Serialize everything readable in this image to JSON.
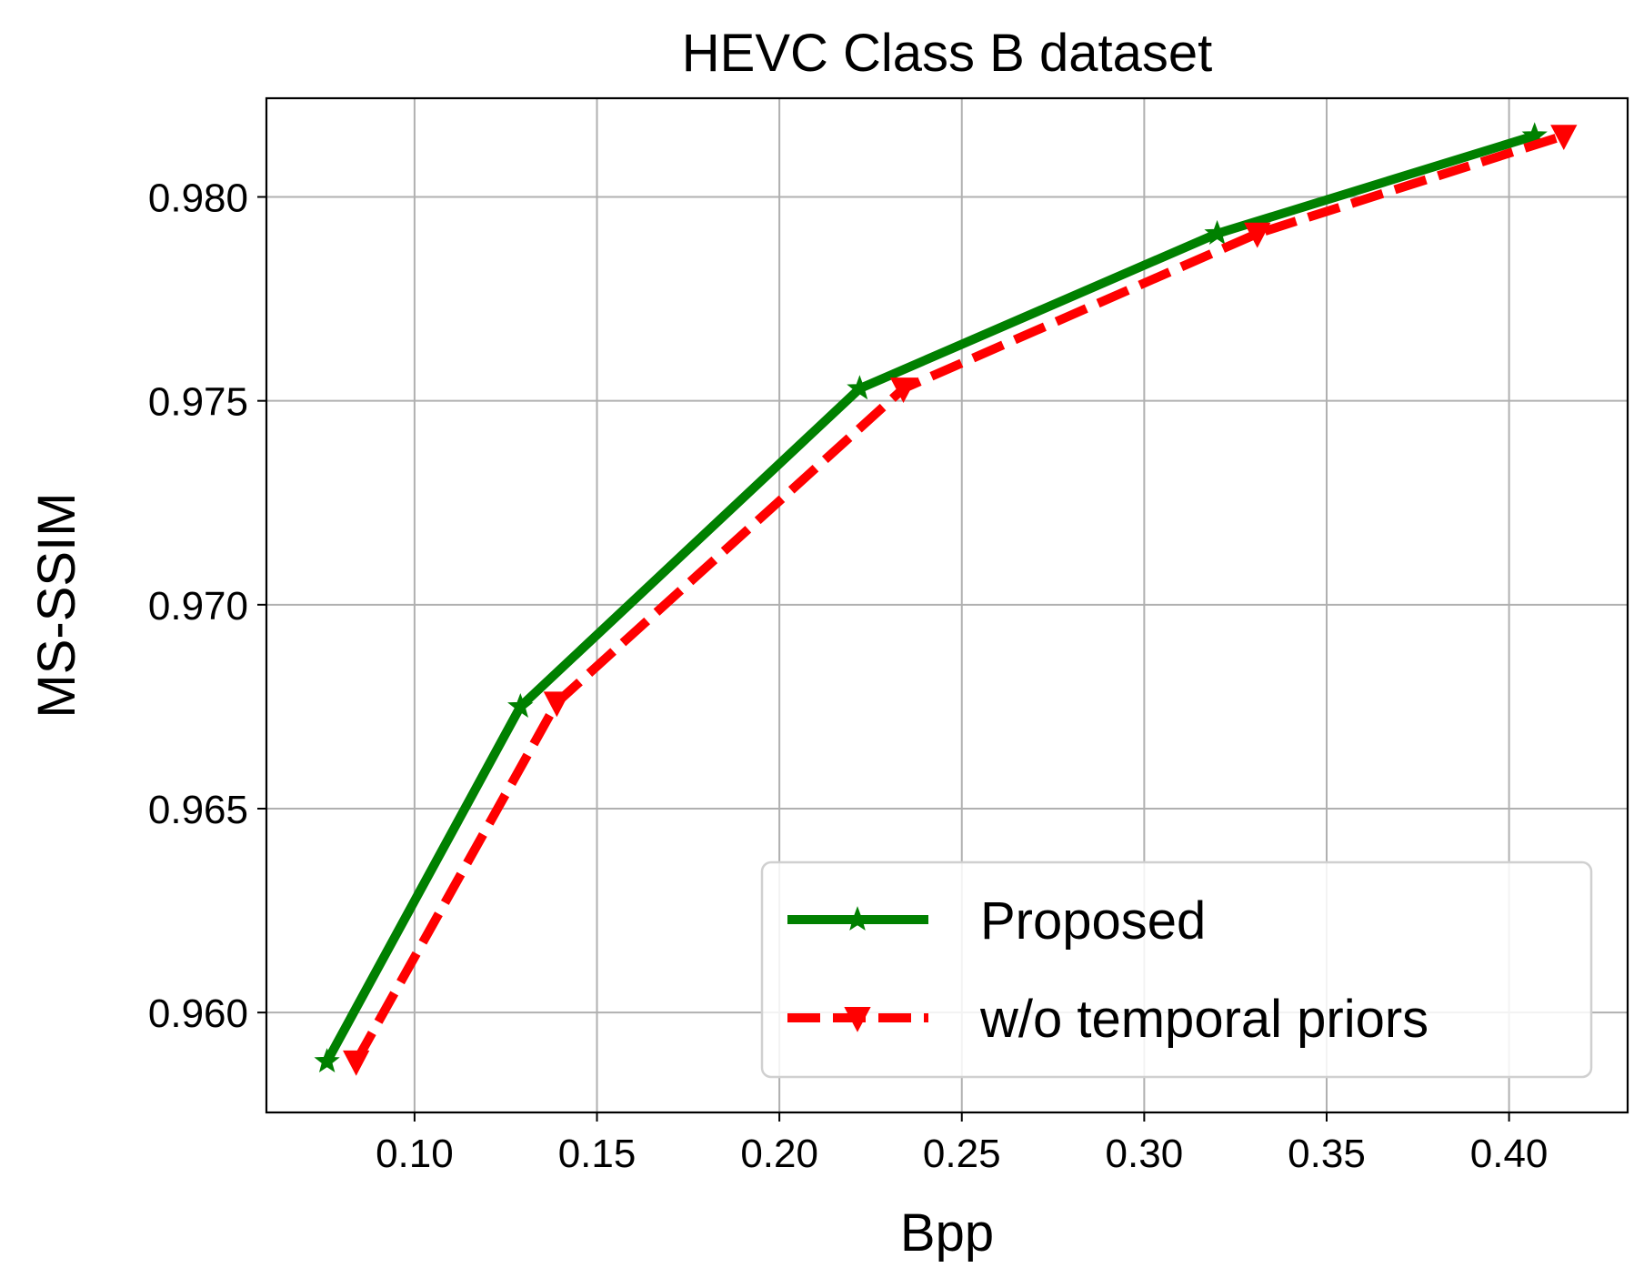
{
  "chart_data": {
    "type": "line",
    "title": "HEVC Class B dataset",
    "xlabel": "Bpp",
    "ylabel": "MS-SSIM",
    "xlim": [
      0.0594,
      0.4325
    ],
    "ylim": [
      0.95755,
      0.98242
    ],
    "xticks": [
      0.1,
      0.15,
      0.2,
      0.25,
      0.3,
      0.35,
      0.4
    ],
    "xtick_labels": [
      "0.10",
      "0.15",
      "0.20",
      "0.25",
      "0.30",
      "0.35",
      "0.40"
    ],
    "yticks": [
      0.96,
      0.965,
      0.97,
      0.975,
      0.98
    ],
    "ytick_labels": [
      "0.960",
      "0.965",
      "0.970",
      "0.975",
      "0.980"
    ],
    "grid": true,
    "legend_position": "lower-right",
    "series": [
      {
        "name": "Proposed",
        "color": "#008000",
        "line_style": "solid",
        "marker": "star",
        "x": [
          0.076,
          0.129,
          0.222,
          0.32,
          0.407
        ],
        "y": [
          0.9588,
          0.9675,
          0.9753,
          0.9791,
          0.9815
        ]
      },
      {
        "name": "w/o temporal priors",
        "color": "#ff0000",
        "line_style": "dashed",
        "marker": "triangle-down",
        "x": [
          0.084,
          0.139,
          0.234,
          0.331,
          0.415
        ],
        "y": [
          0.9588,
          0.9676,
          0.9753,
          0.9791,
          0.9815
        ]
      }
    ]
  }
}
